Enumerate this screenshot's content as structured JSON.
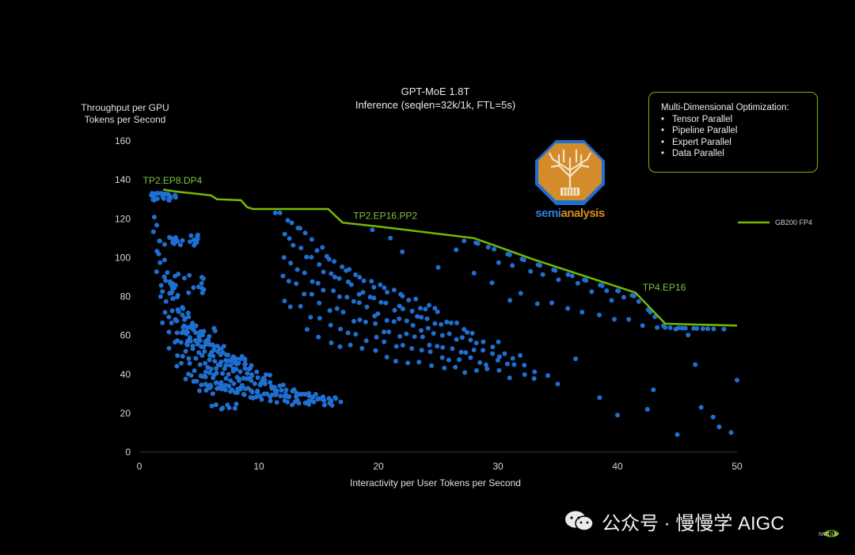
{
  "chart_data": {
    "type": "scatter",
    "title": "GPT-MoE 1.8T",
    "subtitle": "Inference (seqlen=32k/1k, FTL=5s)",
    "ylabel_line1": "Throughput per GPU",
    "ylabel_line2": "Tokens per Second",
    "xlabel": "Interactivity per User Tokens per Second",
    "xlim": [
      0,
      50
    ],
    "ylim": [
      0,
      160
    ],
    "xticks": [
      "0",
      "10",
      "20",
      "30",
      "40",
      "50"
    ],
    "yticks": [
      "0",
      "20",
      "40",
      "60",
      "80",
      "100",
      "120",
      "140",
      "160"
    ],
    "grid": false,
    "legend_position": "right",
    "colors": {
      "background": "#000000",
      "points": "#1f6fd1",
      "frontier": "#76b900"
    },
    "frontier": {
      "name": "GB200 FP4",
      "x": [
        2.0,
        3.0,
        4.5,
        6.0,
        6.5,
        8.5,
        9.0,
        9.5,
        10.5,
        15.8,
        17.0,
        20.0,
        28.0,
        33.0,
        41.5,
        44.0,
        50.0
      ],
      "y": [
        135,
        134,
        133,
        132,
        130,
        129.5,
        126,
        125,
        125,
        125,
        118,
        116,
        110,
        99,
        82,
        66,
        65
      ]
    },
    "annotations": [
      {
        "text": "TP2.EP8.DP4",
        "x": 0.3,
        "y": 138
      },
      {
        "text": "TP2.EP16.PP2",
        "x": 17.9,
        "y": 120
      },
      {
        "text": "TP4.EP16",
        "x": 42.1,
        "y": 83
      }
    ],
    "scatter_families": [
      {
        "k": 280,
        "x0": 1.2,
        "x1": 9.0,
        "n": 38
      },
      {
        "k": 250,
        "x0": 1.2,
        "x1": 9.5,
        "n": 40
      },
      {
        "k": 220,
        "x0": 1.5,
        "x1": 11.0,
        "n": 34
      },
      {
        "k": 190,
        "x0": 1.7,
        "x1": 12.0,
        "n": 30
      },
      {
        "k": 165,
        "x0": 2.0,
        "x1": 14.0,
        "n": 28
      },
      {
        "k": 140,
        "x0": 2.5,
        "x1": 17.0,
        "n": 28
      },
      {
        "k": 120,
        "x0": 3.0,
        "x1": 16.5,
        "n": 28
      },
      {
        "k": 105,
        "x0": 4.0,
        "x1": 16.0,
        "n": 24
      },
      {
        "k": 88,
        "x0": 5.0,
        "x1": 16.0,
        "n": 18
      },
      {
        "k": 1400,
        "x0": 11.5,
        "x1": 25.0,
        "n": 34
      },
      {
        "k": 1250,
        "x0": 12.0,
        "x1": 28.0,
        "n": 34
      },
      {
        "k": 1100,
        "x0": 12.0,
        "x1": 30.0,
        "n": 32
      },
      {
        "k": 950,
        "x0": 12.0,
        "x1": 32.0,
        "n": 32
      },
      {
        "k": 800,
        "x0": 12.0,
        "x1": 33.0,
        "n": 28
      },
      {
        "k": 650,
        "x0": 14.0,
        "x1": 34.0,
        "n": 22
      },
      {
        "k": 3600,
        "x0": 27.0,
        "x1": 49.0,
        "n": 18
      },
      {
        "k": 3000,
        "x0": 28.0,
        "x1": 48.0,
        "n": 16
      },
      {
        "k": 2500,
        "x0": 30.0,
        "x1": 47.0,
        "n": 14
      },
      {
        "k": 2000,
        "x0": 32.0,
        "x1": 46.0,
        "n": 12
      }
    ],
    "scatter_clusters": [
      {
        "x0": 1.0,
        "x1": 3.2,
        "y0": 129,
        "y1": 135,
        "n": 26
      },
      {
        "x0": 1.5,
        "x1": 5.0,
        "y0": 106,
        "y1": 112,
        "n": 22
      },
      {
        "x0": 2.5,
        "x1": 5.5,
        "y0": 81,
        "y1": 92,
        "n": 20
      },
      {
        "x0": 3.5,
        "x1": 6.5,
        "y0": 54,
        "y1": 66,
        "n": 16
      },
      {
        "x0": 4.0,
        "x1": 7.0,
        "y0": 33,
        "y1": 41,
        "n": 12
      },
      {
        "x0": 5.5,
        "x1": 8.5,
        "y0": 22,
        "y1": 25,
        "n": 8
      }
    ],
    "scatter_points": [
      [
        39.5,
        78
      ],
      [
        46.5,
        45
      ],
      [
        47.0,
        23
      ],
      [
        48.0,
        18
      ],
      [
        48.5,
        13
      ],
      [
        50.0,
        37
      ],
      [
        49.5,
        10
      ],
      [
        45.0,
        9
      ],
      [
        43.0,
        32
      ],
      [
        42.5,
        22
      ],
      [
        40.0,
        19
      ],
      [
        38.5,
        28
      ],
      [
        36.5,
        48
      ],
      [
        35.0,
        35
      ],
      [
        25.0,
        95
      ],
      [
        26.5,
        104
      ],
      [
        28.0,
        92
      ],
      [
        29.5,
        87
      ],
      [
        31.0,
        78
      ],
      [
        21.0,
        110
      ],
      [
        22.0,
        103
      ],
      [
        19.5,
        115
      ]
    ]
  },
  "optimization_box": {
    "title": "Multi-Dimensional Optimization:",
    "items": [
      "Tensor Parallel",
      "Pipeline Parallel",
      "Expert Parallel",
      "Data Parallel"
    ]
  },
  "logo": {
    "text_part1": "semi",
    "text_part2": "analysis"
  },
  "watermark": {
    "text": "公众号 · 慢慢学 AIGC"
  },
  "brand": {
    "text": "NVIDIA"
  }
}
